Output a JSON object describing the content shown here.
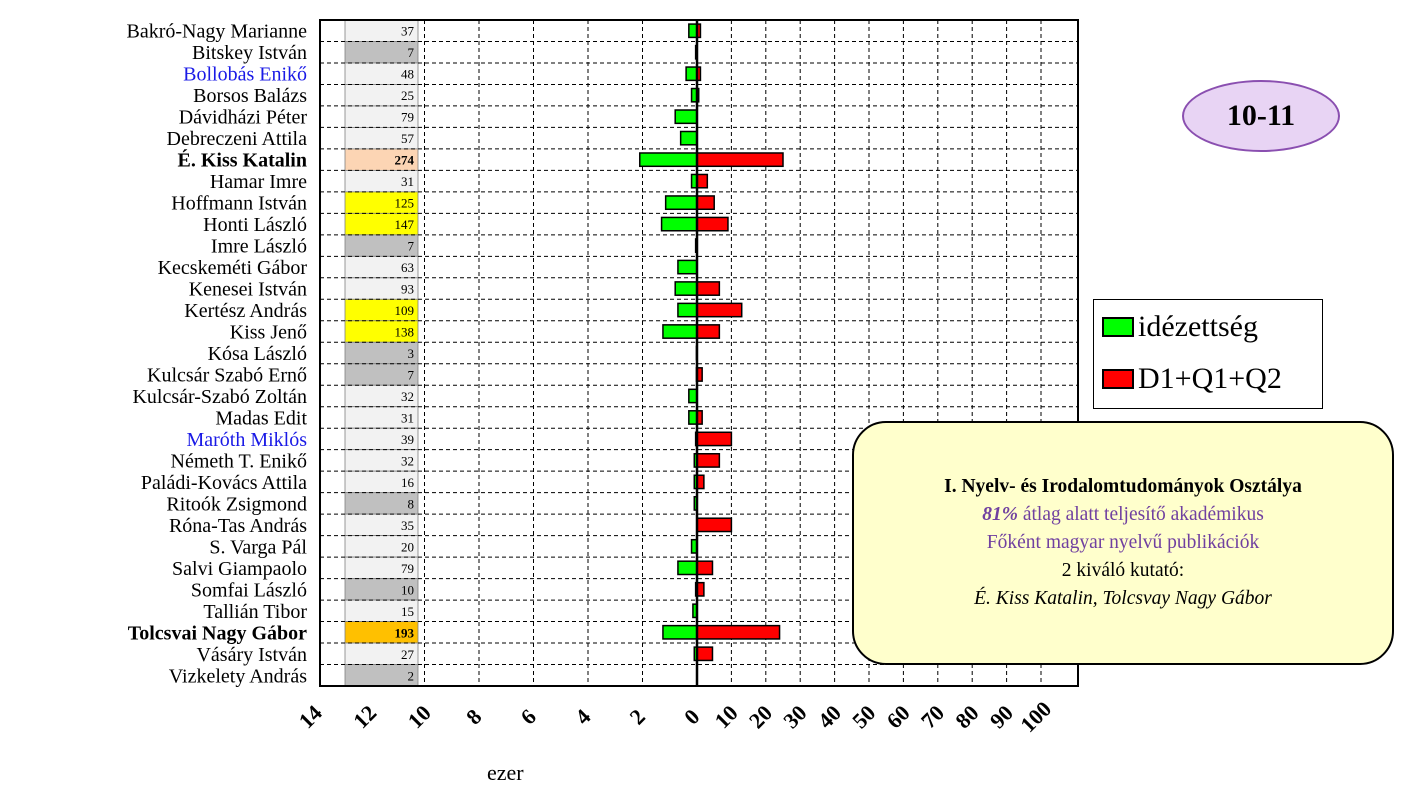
{
  "badge": {
    "label": "10-11"
  },
  "legend": {
    "items": [
      {
        "label": "idézettség",
        "color": "#00ff00"
      },
      {
        "label": "D1+Q1+Q2",
        "color": "#ff0000"
      }
    ]
  },
  "infobox": {
    "title": "I. Nyelv- és Irodalomtudományok Osztálya",
    "percent": "81%",
    "line1_rest": " átlag alatt teljesítő akadémikus",
    "line2": "Főként magyar nyelvű publikációk",
    "line3": "2 kiváló kutató:",
    "line4": "É. Kiss Katalin, Tolcsvay Nagy Gábor"
  },
  "axis": {
    "unit_label": "ezer"
  },
  "colors": {
    "citations": "#00ff00",
    "d1q1q2": "#ff0000",
    "highlight_name": "#1a1ae6",
    "cell_white": "#f2f2f2",
    "cell_gray": "#c0c0c0",
    "cell_yellow": "#ffff00",
    "cell_peach": "#fcd5b4",
    "cell_orange": "#ffc000"
  },
  "chart_data": {
    "type": "bar",
    "orientation": "horizontal",
    "left_axis": {
      "ticks": [
        14,
        12,
        10,
        8,
        6,
        4,
        2,
        0
      ],
      "range": [
        0,
        14
      ]
    },
    "right_axis": {
      "ticks": [
        0,
        10,
        20,
        30,
        40,
        50,
        60,
        70,
        80,
        90,
        100
      ],
      "range": [
        0,
        100
      ]
    },
    "series": [
      {
        "name": "idézettség",
        "side": "left"
      },
      {
        "name": "D1+Q1+Q2",
        "side": "right"
      }
    ],
    "rows": [
      {
        "name": "Bakró-Nagy Marianne",
        "count": "37",
        "cell": "white",
        "name_style": "normal",
        "cit": 0.3,
        "d1": 1
      },
      {
        "name": "Bitskey István",
        "count": "7",
        "cell": "gray",
        "name_style": "normal",
        "cit": 0.05,
        "d1": 0
      },
      {
        "name": "Bollobás Enikő",
        "count": "48",
        "cell": "white",
        "name_style": "blue",
        "cit": 0.4,
        "d1": 1
      },
      {
        "name": "Borsos Balázs",
        "count": "25",
        "cell": "white",
        "name_style": "normal",
        "cit": 0.2,
        "d1": 0.5
      },
      {
        "name": "Dávidházi Péter",
        "count": "79",
        "cell": "white",
        "name_style": "normal",
        "cit": 0.8,
        "d1": 0
      },
      {
        "name": "Debreczeni Attila",
        "count": "57",
        "cell": "white",
        "name_style": "normal",
        "cit": 0.6,
        "d1": 0
      },
      {
        "name": "É. Kiss Katalin",
        "count": "274",
        "cell": "peach",
        "name_style": "bold",
        "cit": 2.1,
        "d1": 25
      },
      {
        "name": "Hamar Imre",
        "count": "31",
        "cell": "white",
        "name_style": "normal",
        "cit": 0.2,
        "d1": 3
      },
      {
        "name": "Hoffmann István",
        "count": "125",
        "cell": "yellow",
        "name_style": "normal",
        "cit": 1.15,
        "d1": 5
      },
      {
        "name": "Honti László",
        "count": "147",
        "cell": "yellow",
        "name_style": "normal",
        "cit": 1.3,
        "d1": 9
      },
      {
        "name": "Imre László",
        "count": "7",
        "cell": "gray",
        "name_style": "normal",
        "cit": 0.05,
        "d1": 0
      },
      {
        "name": "Kecskeméti Gábor",
        "count": "63",
        "cell": "white",
        "name_style": "normal",
        "cit": 0.7,
        "d1": 0
      },
      {
        "name": "Kenesei István",
        "count": "93",
        "cell": "white",
        "name_style": "normal",
        "cit": 0.8,
        "d1": 6.5
      },
      {
        "name": "Kertész András",
        "count": "109",
        "cell": "yellow",
        "name_style": "normal",
        "cit": 0.7,
        "d1": 13
      },
      {
        "name": "Kiss Jenő",
        "count": "138",
        "cell": "yellow",
        "name_style": "normal",
        "cit": 1.25,
        "d1": 6.5
      },
      {
        "name": "Kósa László",
        "count": "3",
        "cell": "gray",
        "name_style": "normal",
        "cit": 0.02,
        "d1": 0
      },
      {
        "name": "Kulcsár Szabó Ernő",
        "count": "7",
        "cell": "gray",
        "name_style": "normal",
        "cit": 0.02,
        "d1": 1.5
      },
      {
        "name": "Kulcsár-Szabó Zoltán",
        "count": "32",
        "cell": "white",
        "name_style": "normal",
        "cit": 0.3,
        "d1": 0
      },
      {
        "name": "Madas Edit",
        "count": "31",
        "cell": "white",
        "name_style": "normal",
        "cit": 0.3,
        "d1": 1.5
      },
      {
        "name": "Maróth Miklós",
        "count": "39",
        "cell": "white",
        "name_style": "blue",
        "cit": 0.05,
        "d1": 10
      },
      {
        "name": "Németh T. Enikő",
        "count": "32",
        "cell": "white",
        "name_style": "normal",
        "cit": 0.1,
        "d1": 6.5
      },
      {
        "name": "Paládi-Kovács Attila",
        "count": "16",
        "cell": "white",
        "name_style": "normal",
        "cit": 0.1,
        "d1": 2
      },
      {
        "name": "Ritoók Zsigmond",
        "count": "8",
        "cell": "gray",
        "name_style": "normal",
        "cit": 0.1,
        "d1": 0
      },
      {
        "name": "Róna-Tas András",
        "count": "35",
        "cell": "white",
        "name_style": "normal",
        "cit": 0,
        "d1": 10
      },
      {
        "name": "S. Varga Pál",
        "count": "20",
        "cell": "white",
        "name_style": "normal",
        "cit": 0.2,
        "d1": 0
      },
      {
        "name": "Salvi Giampaolo",
        "count": "79",
        "cell": "white",
        "name_style": "normal",
        "cit": 0.7,
        "d1": 4.5
      },
      {
        "name": "Somfai László",
        "count": "10",
        "cell": "gray",
        "name_style": "normal",
        "cit": 0.05,
        "d1": 2
      },
      {
        "name": "Tallián Tibor",
        "count": "15",
        "cell": "white",
        "name_style": "normal",
        "cit": 0.15,
        "d1": 0
      },
      {
        "name": "Tolcsvai Nagy Gábor",
        "count": "193",
        "cell": "orange",
        "name_style": "bold",
        "cit": 1.25,
        "d1": 24
      },
      {
        "name": "Vásáry István",
        "count": "27",
        "cell": "white",
        "name_style": "normal",
        "cit": 0.1,
        "d1": 4.5
      },
      {
        "name": "Vizkelety András",
        "count": "2",
        "cell": "gray",
        "name_style": "normal",
        "cit": 0,
        "d1": 0
      }
    ]
  }
}
